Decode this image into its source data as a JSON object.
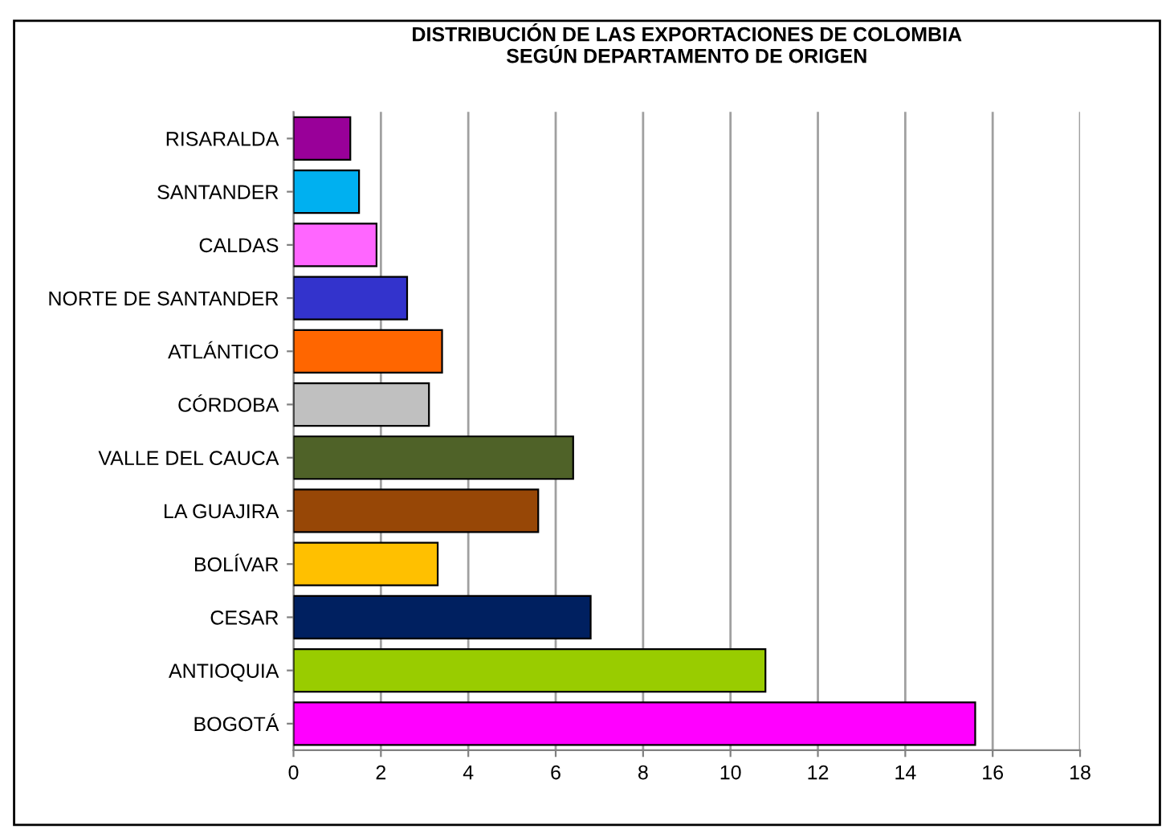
{
  "chart_data": {
    "type": "bar",
    "orientation": "horizontal",
    "title": "DISTRIBUCIÓN DE LAS EXPORTACIONES DE COLOMBIA\nSEGÚN DEPARTAMENTO DE ORIGEN",
    "categories": [
      "RISARALDA",
      "SANTANDER",
      "CALDAS",
      "NORTE DE SANTANDER",
      "ATLÁNTICO",
      "CÓRDOBA",
      "VALLE DEL CAUCA",
      "LA GUAJIRA",
      "BOLÍVAR",
      "CESAR",
      "ANTIOQUIA",
      "BOGOTÁ"
    ],
    "values": [
      1.3,
      1.5,
      1.9,
      2.6,
      3.4,
      3.1,
      6.4,
      5.6,
      3.3,
      6.8,
      10.8,
      15.6
    ],
    "colors": [
      "#990099",
      "#00b0f0",
      "#ff66ff",
      "#3333cc",
      "#ff6600",
      "#c0c0c0",
      "#4f6228",
      "#974706",
      "#ffc000",
      "#002060",
      "#99cc00",
      "#ff00ff"
    ],
    "xlim": [
      0,
      18
    ],
    "xticks": [
      0,
      2,
      4,
      6,
      8,
      10,
      12,
      14,
      16,
      18
    ],
    "grid": "x"
  }
}
